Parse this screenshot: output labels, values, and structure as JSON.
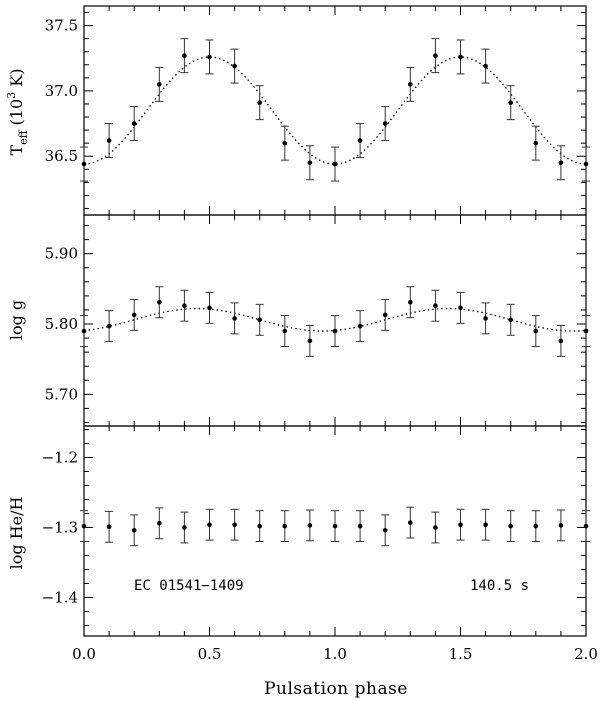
{
  "chart_data": {
    "type": "scatter",
    "xlabel": "Pulsation phase",
    "xlim": [
      0.0,
      2.0
    ],
    "x_ticks": [
      "0.0",
      "0.5",
      "1.0",
      "1.5",
      "2.0"
    ],
    "x": [
      0.0,
      0.1,
      0.2,
      0.3,
      0.4,
      0.5,
      0.6,
      0.7,
      0.8,
      0.9,
      1.0,
      1.1,
      1.2,
      1.3,
      1.4,
      1.5,
      1.6,
      1.7,
      1.8,
      1.9,
      2.0
    ],
    "annotations": {
      "star": "EC 01541−1409",
      "period": "140.5 s"
    },
    "panels": [
      {
        "key": "teff",
        "ylabel_main": "T",
        "ylabel_sub": "eff",
        "ylabel_pre": "(10",
        "ylabel_sup": "3",
        "ylabel_post": " K)",
        "ylim": [
          36.05,
          37.65
        ],
        "y_ticks": [
          "36.5",
          "37.0",
          "37.5"
        ],
        "fit": {
          "mean": 36.85,
          "amp": 0.41,
          "peak_phase": 0.5
        },
        "values": [
          36.44,
          36.62,
          36.75,
          37.05,
          37.27,
          37.26,
          37.19,
          36.91,
          36.6,
          36.45,
          36.44,
          36.62,
          36.75,
          37.05,
          37.27,
          37.26,
          37.19,
          36.91,
          36.6,
          36.45,
          36.44
        ],
        "errors": [
          0.13,
          0.13,
          0.13,
          0.13,
          0.13,
          0.13,
          0.13,
          0.13,
          0.13,
          0.13,
          0.13,
          0.13,
          0.13,
          0.13,
          0.13,
          0.13,
          0.13,
          0.13,
          0.13,
          0.13,
          0.13
        ]
      },
      {
        "key": "logg",
        "ylabel_main": "log g",
        "ylim": [
          5.655,
          5.955
        ],
        "y_ticks": [
          "5.70",
          "5.80",
          "5.90"
        ],
        "fit": {
          "mean": 5.806,
          "amp": 0.016,
          "peak_phase": 0.45
        },
        "values": [
          5.79,
          5.797,
          5.813,
          5.831,
          5.826,
          5.823,
          5.808,
          5.806,
          5.79,
          5.776,
          5.79,
          5.797,
          5.813,
          5.831,
          5.826,
          5.823,
          5.808,
          5.806,
          5.79,
          5.776,
          5.79
        ],
        "errors": [
          0.022,
          0.022,
          0.022,
          0.022,
          0.022,
          0.022,
          0.022,
          0.022,
          0.022,
          0.022,
          0.022,
          0.022,
          0.022,
          0.022,
          0.022,
          0.022,
          0.022,
          0.022,
          0.022,
          0.022,
          0.022
        ]
      },
      {
        "key": "he",
        "ylabel_main": "log He/H",
        "ylim": [
          -1.455,
          -1.155
        ],
        "y_ticks": [
          "−1.2",
          "−1.3",
          "−1.4"
        ],
        "values": [
          -1.298,
          -1.299,
          -1.304,
          -1.294,
          -1.3,
          -1.296,
          -1.296,
          -1.298,
          -1.298,
          -1.297,
          -1.298,
          -1.298,
          -1.304,
          -1.293,
          -1.3,
          -1.296,
          -1.296,
          -1.298,
          -1.298,
          -1.297,
          -1.298
        ],
        "errors": [
          0.022,
          0.022,
          0.022,
          0.022,
          0.022,
          0.022,
          0.022,
          0.022,
          0.022,
          0.022,
          0.022,
          0.022,
          0.022,
          0.022,
          0.022,
          0.022,
          0.022,
          0.022,
          0.022,
          0.022,
          0.022
        ]
      }
    ]
  }
}
